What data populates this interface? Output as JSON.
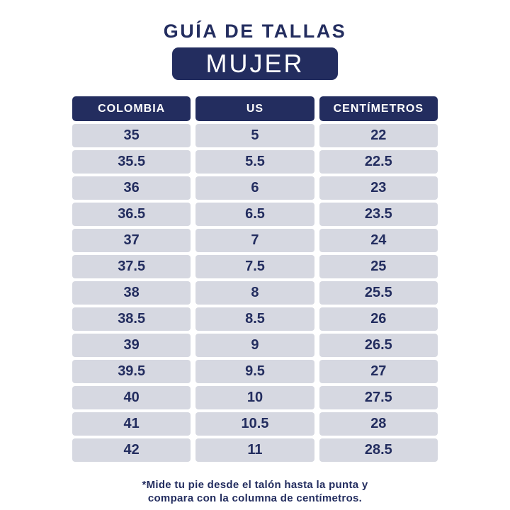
{
  "page": {
    "title": "GUÍA DE TALLAS",
    "badge": "MUJER"
  },
  "footnote": {
    "line1": "*Mide tu pie desde el talón hasta la punta y",
    "line2": "compara con la columna de centímetros."
  },
  "colors": {
    "navy": "#232d5f",
    "cell-bg": "#d6d8e1",
    "page-bg": "#ffffff",
    "header-text": "#ffffff"
  },
  "chart_data": {
    "type": "table",
    "title": "GUÍA DE TALLAS",
    "subtitle": "MUJER",
    "columns": [
      "COLOMBIA",
      "US",
      "CENTÍMETROS"
    ],
    "rows": [
      [
        "35",
        "5",
        "22"
      ],
      [
        "35.5",
        "5.5",
        "22.5"
      ],
      [
        "36",
        "6",
        "23"
      ],
      [
        "36.5",
        "6.5",
        "23.5"
      ],
      [
        "37",
        "7",
        "24"
      ],
      [
        "37.5",
        "7.5",
        "25"
      ],
      [
        "38",
        "8",
        "25.5"
      ],
      [
        "38.5",
        "8.5",
        "26"
      ],
      [
        "39",
        "9",
        "26.5"
      ],
      [
        "39.5",
        "9.5",
        "27"
      ],
      [
        "40",
        "10",
        "27.5"
      ],
      [
        "41",
        "10.5",
        "28"
      ],
      [
        "42",
        "11",
        "28.5"
      ]
    ],
    "footnote": "*Mide tu pie desde el talón hasta la punta y compara con la columna de centímetros."
  }
}
